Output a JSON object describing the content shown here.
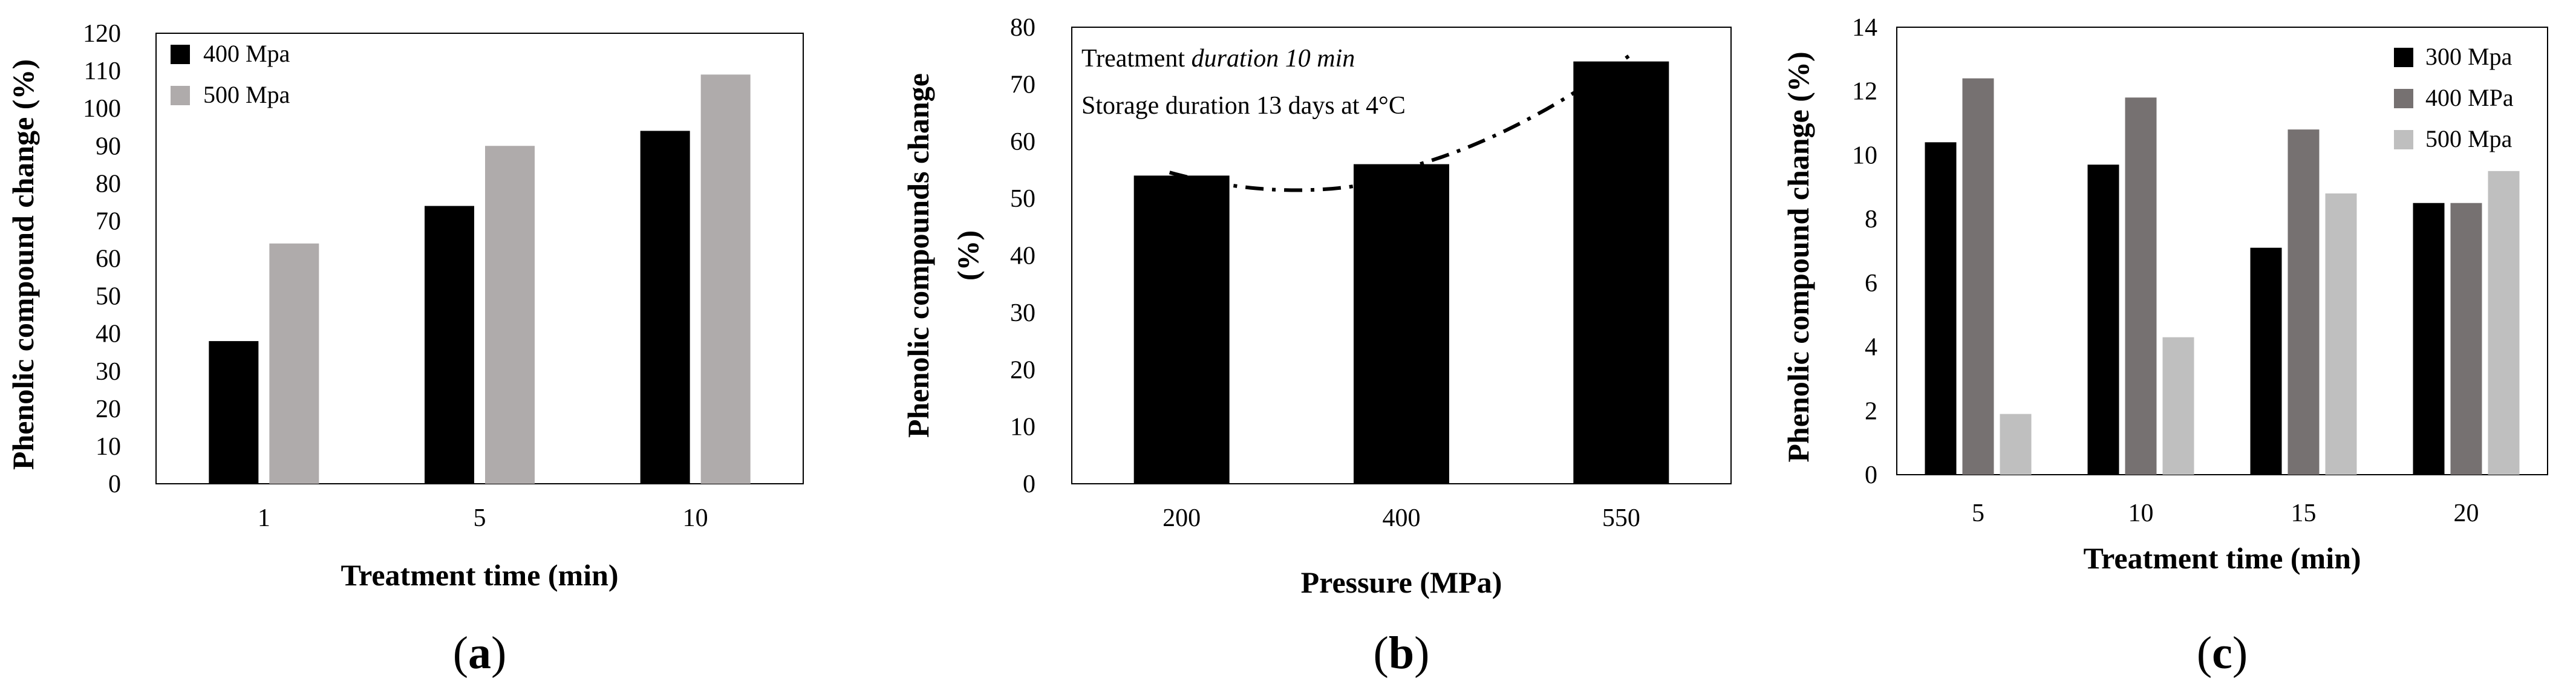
{
  "chart_data": [
    {
      "type": "bar",
      "panel_label": "a",
      "title": "",
      "xlabel": "Treatment time (min)",
      "ylabel": "Phenolic compound change (%)",
      "categories": [
        "1",
        "5",
        "10"
      ],
      "series": [
        {
          "name": "400 Mpa",
          "color": "#000000",
          "values": [
            38,
            74,
            94
          ]
        },
        {
          "name": "500 Mpa",
          "color": "#afabab",
          "values": [
            64,
            90,
            109
          ]
        }
      ],
      "ylim": [
        0,
        120
      ],
      "yticks": [
        "0",
        "10",
        "20",
        "30",
        "40",
        "50",
        "60",
        "70",
        "80",
        "90",
        "100",
        "110",
        "120"
      ],
      "grid": false,
      "legend_position": "top-left"
    },
    {
      "type": "bar",
      "panel_label": "b",
      "title": "",
      "xlabel": "Pressure (MPa)",
      "ylabel": "Phenolic compounds change (%)",
      "categories": [
        "200",
        "400",
        "550"
      ],
      "series": [
        {
          "name": "Phenolic compounds change",
          "color": "#000000",
          "values": [
            54,
            56,
            74
          ]
        }
      ],
      "trendline": {
        "style": "dash-dot",
        "type": "polynomial"
      },
      "annotations": [
        {
          "prefix": "Treatment ",
          "emphasis": "duration 10 min"
        },
        {
          "prefix": "Storage duration 13 days at 4°C",
          "emphasis": ""
        }
      ],
      "ylim": [
        0,
        80
      ],
      "yticks": [
        "0",
        "10",
        "20",
        "30",
        "40",
        "50",
        "60",
        "70",
        "80"
      ],
      "grid": false
    },
    {
      "type": "bar",
      "panel_label": "c",
      "title": "",
      "xlabel": "Treatment time (min)",
      "ylabel": "Phenolic compound change (%)",
      "categories": [
        "5",
        "10",
        "15",
        "20"
      ],
      "series": [
        {
          "name": "300 Mpa",
          "color": "#000000",
          "values": [
            10.4,
            9.7,
            7.1,
            8.5
          ]
        },
        {
          "name": "400 MPa",
          "color": "#767171",
          "values": [
            12.4,
            11.8,
            10.8,
            8.5
          ]
        },
        {
          "name": "500 Mpa",
          "color": "#bfbfbf",
          "values": [
            1.9,
            4.3,
            8.8,
            9.5
          ]
        }
      ],
      "ylim": [
        0,
        14
      ],
      "yticks": [
        "0",
        "2",
        "4",
        "6",
        "8",
        "10",
        "12",
        "14"
      ],
      "grid": false,
      "legend_position": "top-right"
    }
  ]
}
